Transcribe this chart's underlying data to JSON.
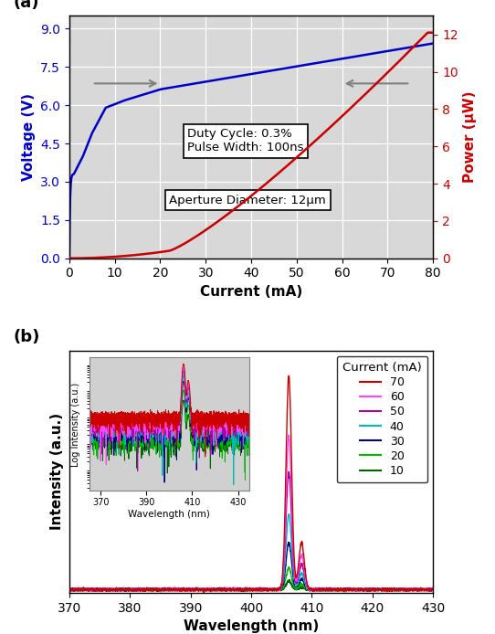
{
  "panel_a": {
    "xlabel": "Current (mA)",
    "ylabel_left": "Voltage (V)",
    "ylabel_right": "Power (μW)",
    "xlim": [
      0,
      80
    ],
    "ylim_left": [
      0,
      9.5
    ],
    "ylim_right": [
      0,
      13
    ],
    "yticks_left": [
      0.0,
      1.5,
      3.0,
      4.5,
      6.0,
      7.5,
      9.0
    ],
    "yticks_right": [
      0,
      2,
      4,
      6,
      8,
      10,
      12
    ],
    "xticks": [
      0,
      10,
      20,
      30,
      40,
      50,
      60,
      70,
      80
    ],
    "voltage_color": "#0000CC",
    "power_color": "#CC0000",
    "annotation1": "Duty Cycle: 0.3%\nPulse Width: 100ns",
    "annotation2": "Aperture Diameter: 12μm",
    "bg_color": "#D8D8D8"
  },
  "panel_b": {
    "xlabel": "Wavelength (nm)",
    "ylabel": "Intensity (a.u.)",
    "xlim": [
      370,
      430
    ],
    "xticks": [
      370,
      380,
      390,
      400,
      410,
      420,
      430
    ],
    "legend_title": "Current (mA)",
    "currents": [
      10,
      20,
      30,
      40,
      50,
      60,
      70
    ],
    "colors": [
      "#006400",
      "#00BB00",
      "#00008B",
      "#00BBBB",
      "#AA00AA",
      "#FF44FF",
      "#CC0000"
    ],
    "peak_wavelength": 406.2,
    "peak_heights": [
      0.04,
      0.1,
      0.22,
      0.35,
      0.55,
      0.72,
      1.0
    ],
    "secondary_peak_wavelength": 408.3,
    "secondary_peak_heights": [
      0.01,
      0.025,
      0.05,
      0.075,
      0.12,
      0.16,
      0.22
    ]
  }
}
